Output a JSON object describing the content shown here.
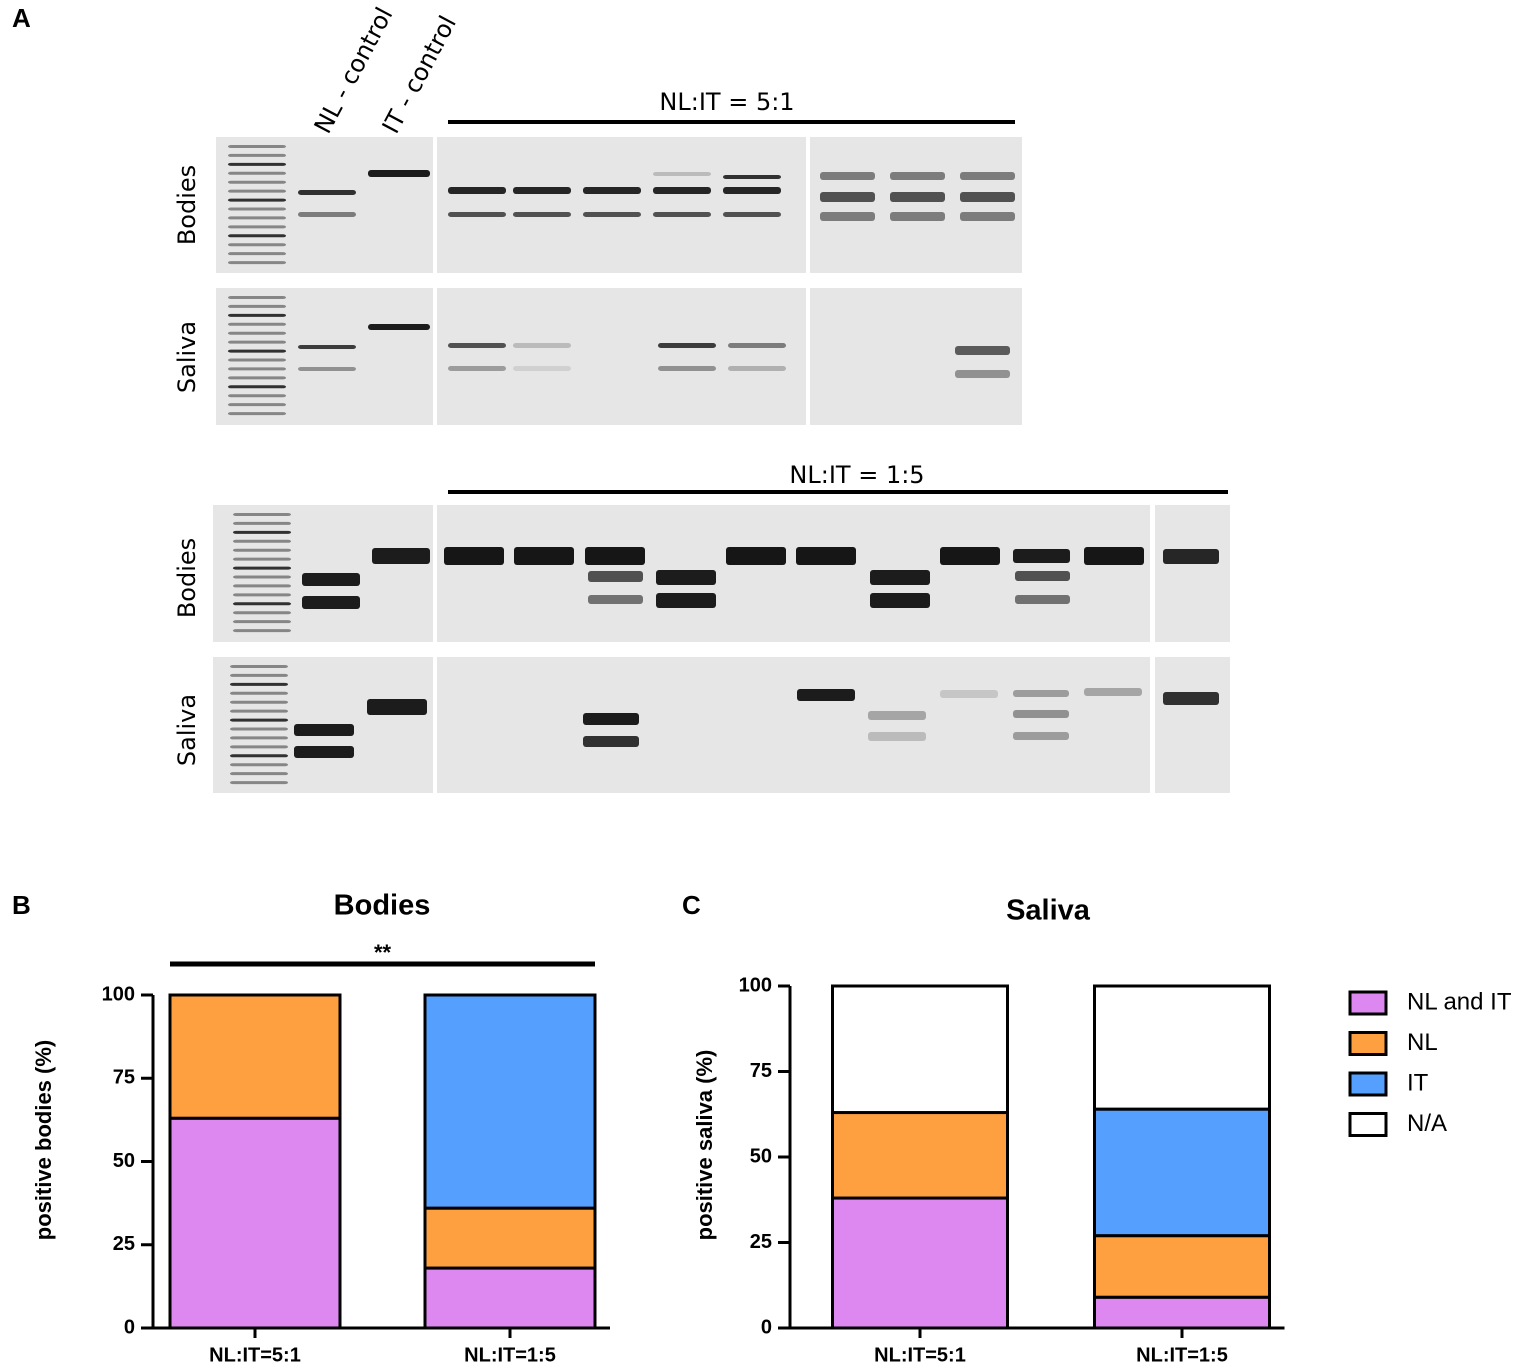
{
  "panel_labels": [
    "A",
    "B",
    "C"
  ],
  "gel": {
    "lane_labels": [
      "NL - control",
      "IT - control"
    ],
    "ratio_labels": [
      "NL:IT = 5:1",
      "NL:IT = 1:5"
    ],
    "row_labels": [
      "Bodies",
      "Saliva",
      "Bodies",
      "Saliva"
    ]
  },
  "chart_data": [
    {
      "type": "stacked_bar",
      "title": "Bodies",
      "y_label": "positive bodies (%)",
      "categories": [
        "NL:IT=5:1",
        "NL:IT=1:5"
      ],
      "series": [
        {
          "color": "#dd88f0",
          "values": [
            63,
            18
          ]
        },
        {
          "color": "#ffa040",
          "values": [
            37,
            18
          ]
        },
        {
          "color": "#55a0ff",
          "values": [
            0,
            64
          ]
        }
      ],
      "ylim": [
        0,
        100
      ],
      "yticks": [
        0,
        25,
        50,
        75,
        100
      ],
      "annotation": "**"
    },
    {
      "type": "stacked_bar",
      "title": "Saliva",
      "y_label": "positive saliva (%)",
      "categories": [
        "NL:IT=5:1",
        "NL:IT=1:5"
      ],
      "series": [
        {
          "name": "NL and IT",
          "color": "#dd88f0",
          "values": [
            38,
            9
          ]
        },
        {
          "name": "NL",
          "color": "#ffa040",
          "values": [
            25,
            18
          ]
        },
        {
          "name": "IT",
          "color": "#55a0ff",
          "values": [
            0,
            37
          ]
        },
        {
          "name": "N/A",
          "color": "#ffffff",
          "values": [
            37,
            36
          ]
        }
      ],
      "ylim": [
        0,
        100
      ],
      "yticks": [
        0,
        25,
        50,
        75,
        100
      ],
      "legend": "right"
    }
  ]
}
